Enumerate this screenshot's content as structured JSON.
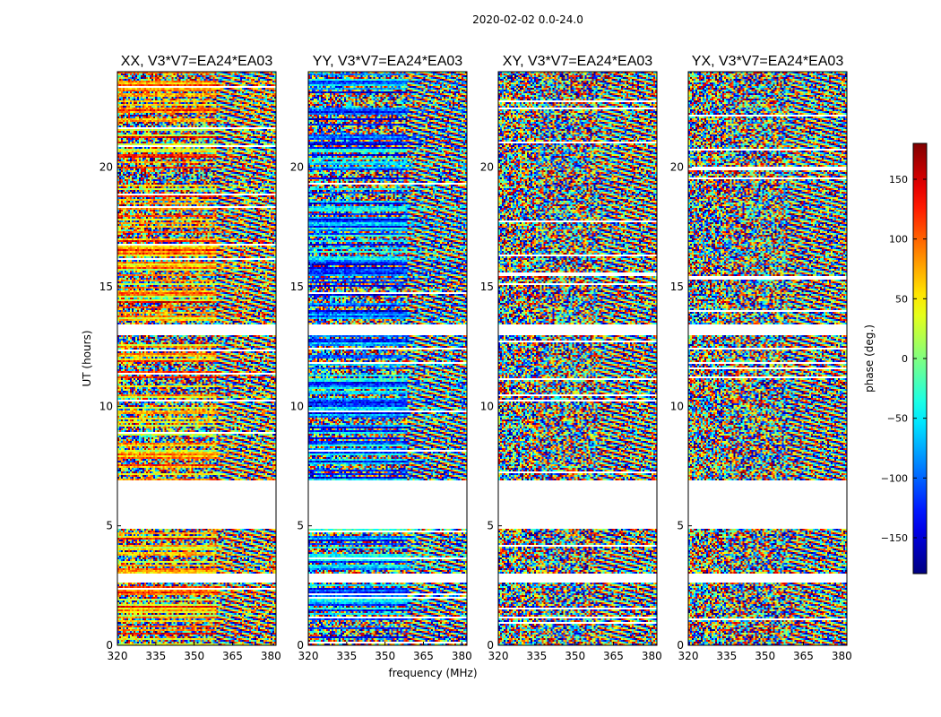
{
  "chart_data": {
    "type": "heatmap",
    "suptitle": "2020-02-02 0.0-24.0",
    "xlabel": "frequency (MHz)",
    "ylabel": "UT (hours)",
    "colorbar_label": "phase (deg.)",
    "xlim": [
      320,
      382
    ],
    "ylim": [
      0,
      24
    ],
    "x_ticks": [
      320,
      335,
      350,
      365,
      380
    ],
    "y_ticks": [
      0,
      5,
      10,
      15,
      20
    ],
    "colorbar_range": [
      -180,
      180
    ],
    "colorbar_ticks": [
      150,
      100,
      50,
      0,
      -50,
      -100,
      -150
    ],
    "colorbar_tick_labels": [
      "150",
      "100",
      "50",
      "0",
      "−50",
      "−100",
      "−150"
    ],
    "no_data_hours": [
      [
        2.65,
        3.05
      ],
      [
        4.95,
        6.95
      ],
      [
        13.05,
        13.45
      ]
    ],
    "panels": [
      {
        "title": "XX, V3*V7=EA24*EA03",
        "polarization": "XX"
      },
      {
        "title": "YY, V3*V7=EA24*EA03",
        "polarization": "YY"
      },
      {
        "title": "XY, V3*V7=EA24*EA03",
        "polarization": "XY"
      },
      {
        "title": "YX, V3*V7=EA24*EA03",
        "polarization": "YX"
      }
    ]
  }
}
